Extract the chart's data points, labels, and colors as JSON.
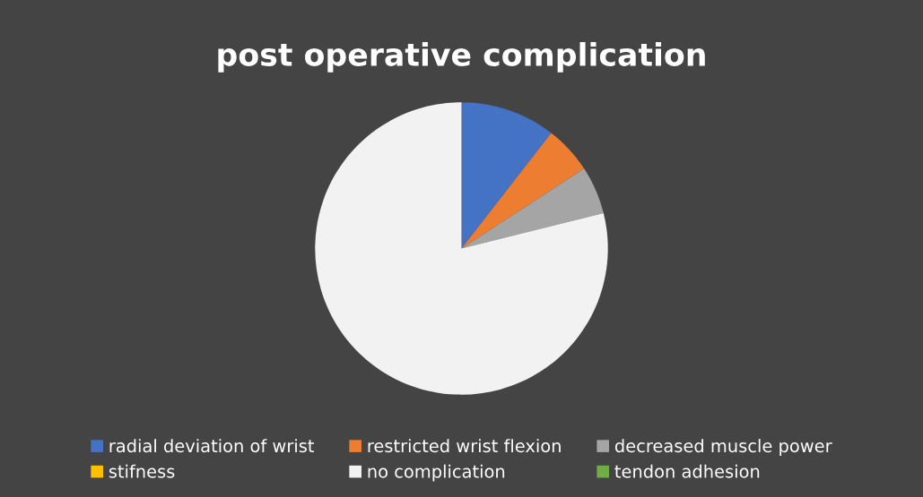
{
  "chart_data": {
    "type": "pie",
    "title": "post operative complication",
    "categories": [
      "radial deviation of wrist",
      "restricted wrist flexion",
      "decreased muscle power",
      "stifness",
      "no complication",
      "tendon adhesion"
    ],
    "values": [
      10.5,
      5.3,
      5.3,
      0,
      78.9,
      0
    ],
    "colors": [
      "#4472c4",
      "#ed7d31",
      "#a5a5a5",
      "#ffc000",
      "#f2f2f2",
      "#70ad47"
    ],
    "legend": "bottom"
  }
}
